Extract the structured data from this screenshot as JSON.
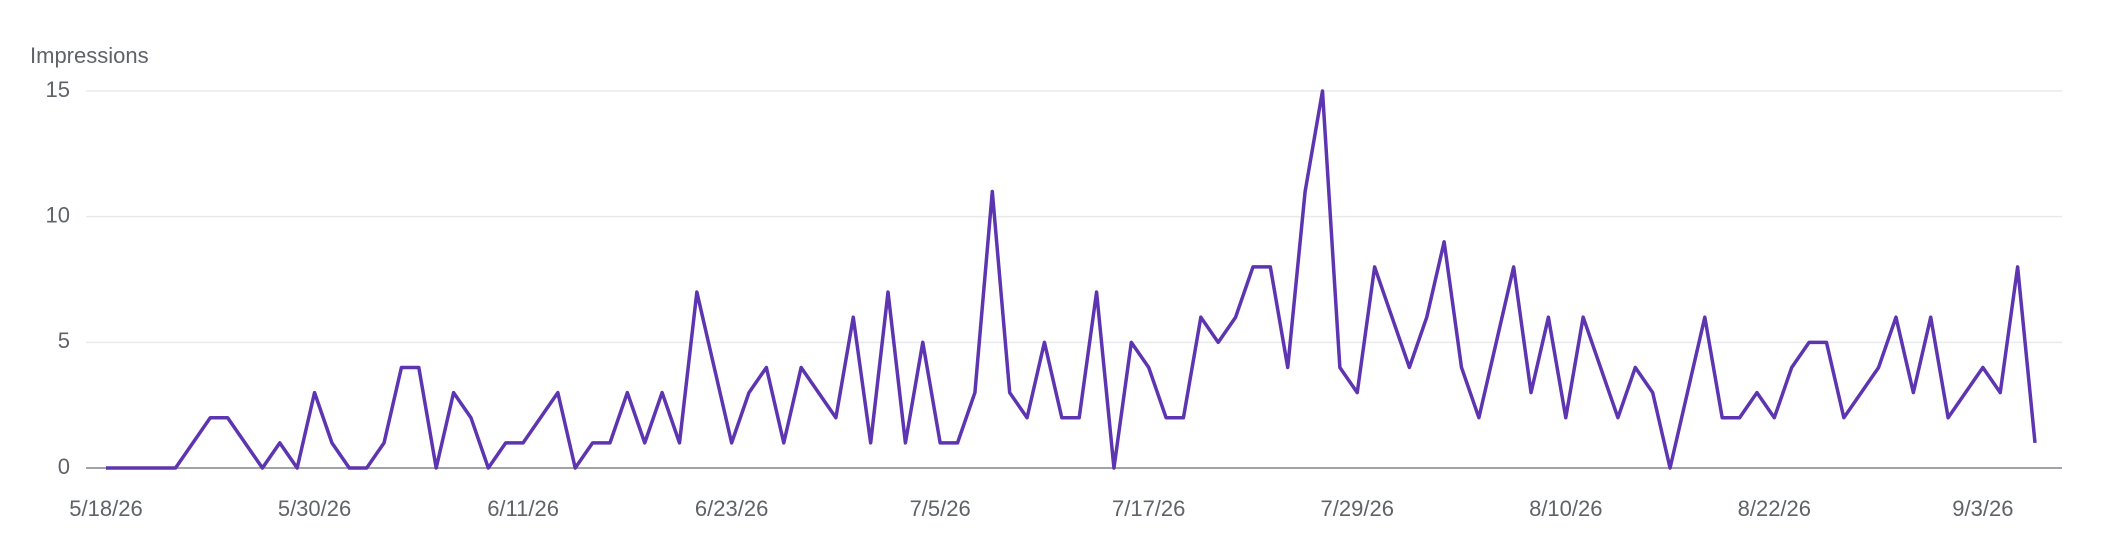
{
  "chart_data": {
    "type": "line",
    "y_label": "Impressions",
    "categories": [
      "5/18/26",
      null,
      null,
      null,
      null,
      null,
      null,
      null,
      null,
      null,
      null,
      null,
      "5/30/26",
      null,
      null,
      null,
      null,
      null,
      null,
      null,
      null,
      null,
      null,
      null,
      "6/11/26",
      null,
      null,
      null,
      null,
      null,
      null,
      null,
      null,
      null,
      null,
      null,
      "6/23/26",
      null,
      null,
      null,
      null,
      null,
      null,
      null,
      null,
      null,
      null,
      null,
      "7/5/26",
      null,
      null,
      null,
      null,
      null,
      null,
      null,
      null,
      null,
      null,
      null,
      "7/17/26",
      null,
      null,
      null,
      null,
      null,
      null,
      null,
      null,
      null,
      null,
      null,
      "7/29/26",
      null,
      null,
      null,
      null,
      null,
      null,
      null,
      null,
      null,
      null,
      null,
      "8/10/26",
      null,
      null,
      null,
      null,
      null,
      null,
      null,
      null,
      null,
      null,
      null,
      "8/22/26",
      null,
      null,
      null,
      null,
      null,
      null,
      null,
      null,
      null,
      null,
      null,
      "9/3/26",
      null,
      null,
      null
    ],
    "series": [
      {
        "name": "Impressions",
        "color": "#5e35b1",
        "values": [
          0,
          0,
          0,
          0,
          0,
          1,
          2,
          2,
          1,
          0,
          1,
          0,
          3,
          1,
          0,
          0,
          1,
          4,
          4,
          0,
          3,
          2,
          0,
          1,
          1,
          2,
          3,
          0,
          1,
          1,
          3,
          1,
          3,
          1,
          7,
          4,
          1,
          3,
          4,
          1,
          4,
          3,
          2,
          6,
          1,
          7,
          1,
          5,
          1,
          1,
          3,
          11,
          3,
          2,
          5,
          2,
          2,
          7,
          0,
          5,
          4,
          2,
          2,
          6,
          5,
          6,
          8,
          8,
          4,
          11,
          15,
          4,
          3,
          8,
          6,
          4,
          6,
          9,
          4,
          2,
          5,
          8,
          3,
          6,
          2,
          6,
          4,
          2,
          4,
          3,
          0,
          3,
          6,
          2,
          2,
          3,
          2,
          4,
          5,
          5,
          2,
          3,
          4,
          6,
          3,
          6,
          2,
          3,
          4,
          3,
          8,
          1
        ]
      }
    ],
    "ylim": [
      0,
      15
    ],
    "yticks": [
      0,
      5,
      10,
      15
    ],
    "grid": true
  }
}
